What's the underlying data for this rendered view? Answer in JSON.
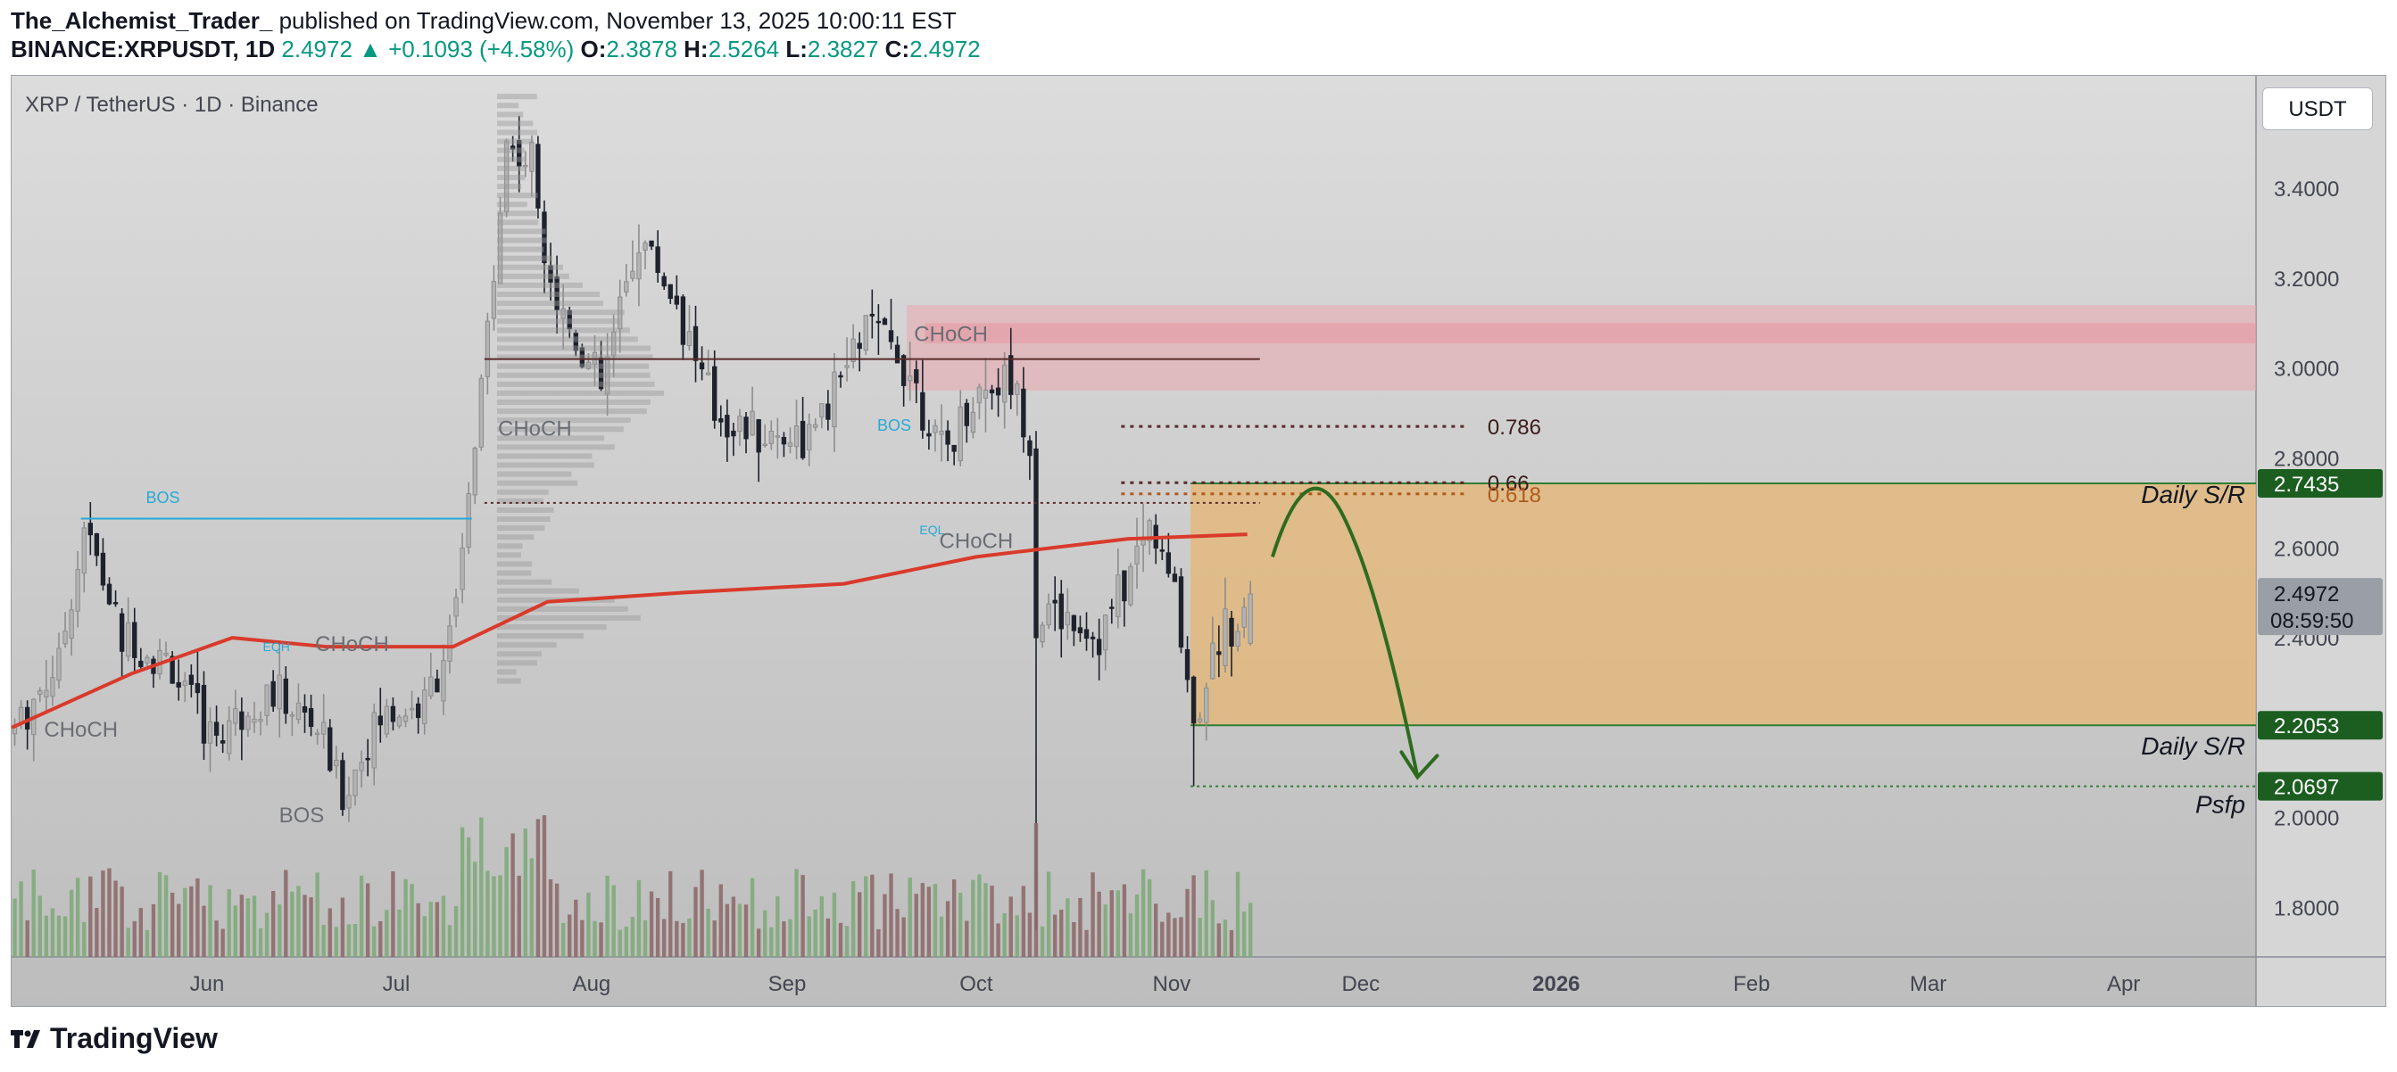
{
  "header": {
    "publisher": "The_Alchemist_Trader_",
    "published_text": " published on TradingView.com, November 13, 2025 10:00:11 EST",
    "symbol": "BINANCE:XRPUSDT, 1D",
    "last": "2.4972",
    "change": "▲ +0.1093 (+4.58%)",
    "o_label": "O:",
    "o": "2.3878",
    "h_label": "H:",
    "h": "2.5264",
    "l_label": "L:",
    "l": "2.3827",
    "c_label": "C:",
    "c": "2.4972"
  },
  "symbol_title": "XRP / TetherUS · 1D · Binance",
  "currency": "USDT",
  "footer": {
    "brand": "TradingView",
    "icon": "tradingview-logo-icon"
  },
  "colors": {
    "up": "#b3b3b3",
    "down": "#1e222d",
    "ema": "#d93a2b",
    "zone_orange": "#e8b46a",
    "zone_red": "#e9a6ad",
    "tag_green": "#1b5e20",
    "arrow": "#2e6b1f",
    "bos": "#26a9d6"
  },
  "chart_data": {
    "type": "candlestick",
    "timeframe": "1D",
    "x_axis": {
      "labels": [
        {
          "date": "2025-06-01",
          "text": "Jun"
        },
        {
          "date": "2025-07-01",
          "text": "Jul"
        },
        {
          "date": "2025-08-01",
          "text": "Aug"
        },
        {
          "date": "2025-09-01",
          "text": "Sep"
        },
        {
          "date": "2025-10-01",
          "text": "Oct"
        },
        {
          "date": "2025-11-01",
          "text": "Nov"
        },
        {
          "date": "2025-12-01",
          "text": "Dec"
        },
        {
          "date": "2026-01-01",
          "text": "2026"
        },
        {
          "date": "2026-02-01",
          "text": "Feb"
        },
        {
          "date": "2026-03-01",
          "text": "Mar"
        },
        {
          "date": "2026-04-01",
          "text": "Apr"
        }
      ],
      "start": "2025-05-01",
      "end": "2026-04-22"
    },
    "y_axis": {
      "ticks": [
        "3.4000",
        "3.2000",
        "3.0000",
        "2.8000",
        "2.6000",
        "2.4000",
        "2.0000",
        "1.8000"
      ],
      "range": [
        1.69,
        3.65
      ]
    },
    "price_tags": [
      {
        "value": 2.7435,
        "text": "2.7435"
      },
      {
        "value": 2.2053,
        "text": "2.2053"
      },
      {
        "value": 2.0697,
        "text": "2.0697"
      }
    ],
    "current_price": {
      "value": 2.4972,
      "text": "2.4972",
      "countdown": "08:59:50"
    },
    "waypoints": [
      {
        "date": "2025-05-01",
        "close": 2.2
      },
      {
        "date": "2025-05-08",
        "close": 2.35
      },
      {
        "date": "2025-05-12",
        "close": 2.65
      },
      {
        "date": "2025-05-18",
        "close": 2.4
      },
      {
        "date": "2025-05-25",
        "close": 2.35
      },
      {
        "date": "2025-06-01",
        "close": 2.18
      },
      {
        "date": "2025-06-10",
        "close": 2.28
      },
      {
        "date": "2025-06-18",
        "close": 2.2
      },
      {
        "date": "2025-06-22",
        "close": 2.05
      },
      {
        "date": "2025-06-28",
        "close": 2.22
      },
      {
        "date": "2025-07-05",
        "close": 2.25
      },
      {
        "date": "2025-07-10",
        "close": 2.45
      },
      {
        "date": "2025-07-14",
        "close": 2.95
      },
      {
        "date": "2025-07-18",
        "close": 3.5
      },
      {
        "date": "2025-07-22",
        "close": 3.45
      },
      {
        "date": "2025-07-26",
        "close": 3.15
      },
      {
        "date": "2025-08-02",
        "close": 2.95
      },
      {
        "date": "2025-08-08",
        "close": 3.3
      },
      {
        "date": "2025-08-14",
        "close": 3.15
      },
      {
        "date": "2025-08-20",
        "close": 2.9
      },
      {
        "date": "2025-08-28",
        "close": 2.85
      },
      {
        "date": "2025-09-05",
        "close": 2.85
      },
      {
        "date": "2025-09-13",
        "close": 3.1
      },
      {
        "date": "2025-09-20",
        "close": 3.0
      },
      {
        "date": "2025-09-25",
        "close": 2.8
      },
      {
        "date": "2025-10-01",
        "close": 2.95
      },
      {
        "date": "2025-10-06",
        "close": 2.98
      },
      {
        "date": "2025-10-09",
        "close": 2.85
      },
      {
        "date": "2025-10-11",
        "close": 2.45
      },
      {
        "date": "2025-10-15",
        "close": 2.45
      },
      {
        "date": "2025-10-20",
        "close": 2.4
      },
      {
        "date": "2025-10-25",
        "close": 2.55
      },
      {
        "date": "2025-10-28",
        "close": 2.65
      },
      {
        "date": "2025-11-01",
        "close": 2.5
      },
      {
        "date": "2025-11-04",
        "close": 2.22
      },
      {
        "date": "2025-11-08",
        "close": 2.4
      },
      {
        "date": "2025-11-11",
        "close": 2.45
      },
      {
        "date": "2025-11-13",
        "close": 2.4972
      }
    ],
    "ema_200": [
      {
        "date": "2025-05-01",
        "value": 2.2
      },
      {
        "date": "2025-05-20",
        "value": 2.32
      },
      {
        "date": "2025-06-05",
        "value": 2.4
      },
      {
        "date": "2025-06-20",
        "value": 2.38
      },
      {
        "date": "2025-07-10",
        "value": 2.38
      },
      {
        "date": "2025-07-25",
        "value": 2.48
      },
      {
        "date": "2025-08-15",
        "value": 2.5
      },
      {
        "date": "2025-09-10",
        "value": 2.52
      },
      {
        "date": "2025-10-01",
        "value": 2.58
      },
      {
        "date": "2025-10-25",
        "value": 2.62
      },
      {
        "date": "2025-11-13",
        "value": 2.63
      }
    ],
    "zones": [
      {
        "name": "supply",
        "from": "2025-09-20",
        "to": "2026-04-22",
        "low": 2.95,
        "high": 3.14
      },
      {
        "name": "daily-sr",
        "from": "2025-11-04",
        "to": "2026-04-22",
        "low": 2.2053,
        "high": 2.7435
      }
    ],
    "horizontal_levels": [
      {
        "label": "0.786",
        "value": 2.87,
        "from": "2025-10-24",
        "to": "2025-12-18"
      },
      {
        "label": "0.66",
        "value": 2.745,
        "from": "2025-10-24",
        "to": "2025-12-18"
      },
      {
        "label": "0.618",
        "value": 2.72,
        "from": "2025-10-24",
        "to": "2025-12-18"
      },
      {
        "label": "",
        "value": 3.02,
        "from": "2025-07-15",
        "to": "2025-11-15"
      },
      {
        "label": "",
        "value": 2.7,
        "from": "2025-07-15",
        "to": "2025-11-15"
      },
      {
        "label": "",
        "value": 2.0697,
        "from": "2025-11-04",
        "to": "2026-04-22"
      }
    ],
    "annotations": [
      {
        "text": "BOS",
        "date": "2025-05-25",
        "value": 2.7
      },
      {
        "text": "EQH",
        "date": "2025-06-12",
        "value": 2.37
      },
      {
        "text": "CHoCH",
        "date": "2025-06-24",
        "value": 2.37
      },
      {
        "text": "CHoCH",
        "date": "2025-05-12",
        "value": 2.18
      },
      {
        "text": "BOS",
        "date": "2025-06-16",
        "value": 1.99
      },
      {
        "text": "CHoCH",
        "date": "2025-07-23",
        "value": 2.85
      },
      {
        "text": "BOS",
        "date": "2025-09-18",
        "value": 2.86
      },
      {
        "text": "CHoCH",
        "date": "2025-09-27",
        "value": 3.06
      },
      {
        "text": "EQL",
        "date": "2025-09-24",
        "value": 2.63
      },
      {
        "text": "CHoCH",
        "date": "2025-10-01",
        "value": 2.6
      },
      {
        "text": "Daily S/R",
        "side": "right",
        "value": 2.72
      },
      {
        "text": "Daily S/R",
        "side": "right",
        "value": 2.16
      },
      {
        "text": "Psfp",
        "side": "right",
        "value": 2.03
      }
    ],
    "projection_arrow": {
      "from": {
        "date": "2025-11-17",
        "value": 2.58
      },
      "peak": {
        "date": "2025-11-24",
        "value": 2.71
      },
      "to": {
        "date": "2025-12-10",
        "value": 2.09
      }
    }
  }
}
